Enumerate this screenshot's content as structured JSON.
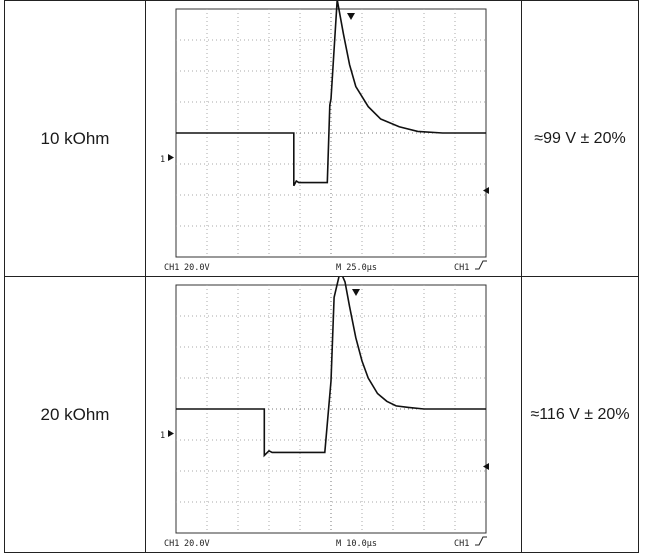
{
  "rows": [
    {
      "load": "10 kOhm",
      "result": "≈99 V ± 20%",
      "scope": {
        "ch_label": "CH1",
        "volts_div": "20.0V",
        "timebase": "M 25.0µs",
        "trigger_label": "CH1",
        "chart_data": {
          "type": "line",
          "xlim": [
            -125,
            125
          ],
          "ylim": [
            -80,
            80
          ],
          "x_unit": "µs",
          "y_unit": "V",
          "grid": true,
          "series": [
            {
              "x": [
                -125,
                -30,
                -30,
                -28,
                -26,
                -3,
                -3,
                -1,
                0,
                5,
                10,
                15,
                20,
                30,
                40,
                55,
                70,
                90,
                125
              ],
              "y": [
                0,
                0,
                -34,
                -31,
                -32,
                -32,
                -32,
                18,
                22,
                86,
                64,
                44,
                30,
                17,
                9,
                4,
                1,
                0,
                0
              ]
            }
          ]
        }
      }
    },
    {
      "load": "20 kOhm",
      "result": "≈116 V ± 20%",
      "scope": {
        "ch_label": "CH1",
        "volts_div": "20.0V",
        "timebase": "M 10.0µs",
        "trigger_label": "CH1",
        "chart_data": {
          "type": "line",
          "xlim": [
            -50,
            50
          ],
          "ylim": [
            -80,
            80
          ],
          "x_unit": "µs",
          "y_unit": "V",
          "grid": true,
          "series": [
            {
              "x": [
                -50,
                -21.5,
                -21.5,
                -20,
                -19,
                -2,
                -2,
                0,
                1,
                3,
                4.5,
                6,
                8,
                10,
                12,
                15,
                18,
                21,
                25,
                30,
                50
              ],
              "y": [
                0,
                0,
                -30,
                -27,
                -28,
                -28,
                -28,
                18,
                72,
                89,
                82,
                66,
                46,
                31,
                20,
                10,
                5,
                2,
                1,
                0,
                0
              ]
            }
          ]
        }
      }
    }
  ]
}
